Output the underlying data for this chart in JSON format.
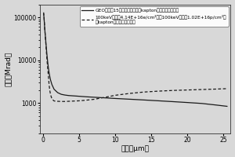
{
  "xlabel": "深度（μm）",
  "ylabel": "剂量（Mrad）",
  "xlim": [
    -0.5,
    26
  ],
  "ylim": [
    200,
    200000
  ],
  "yticks": [
    1000,
    10000,
    100000
  ],
  "ytick_labels": [
    "1000",
    "10000",
    "100000"
  ],
  "xticks": [
    0,
    5,
    10,
    15,
    20,
    25
  ],
  "legend1": "GEO轨道上15年的电子和质子在kapton中的剂量深度分布",
  "legend2": "100keV电子（4.14E+16e/cm²）和100keV质子（1.02E+16p/cm²）\n在kapton中的剂量深度分布",
  "solid_x": [
    0.05,
    0.1,
    0.15,
    0.2,
    0.3,
    0.4,
    0.5,
    0.6,
    0.7,
    0.8,
    0.9,
    1.0,
    1.2,
    1.5,
    2.0,
    2.5,
    3.0,
    3.5,
    4.0,
    5.0,
    6.0,
    7.0,
    8.0,
    9.0,
    10.0,
    12.0,
    14.0,
    16.0,
    18.0,
    20.0,
    22.0,
    24.0,
    25.5
  ],
  "solid_y": [
    120000,
    100000,
    75000,
    55000,
    35000,
    22000,
    14000,
    9500,
    6800,
    5200,
    4200,
    3500,
    2700,
    2100,
    1750,
    1600,
    1540,
    1500,
    1480,
    1440,
    1400,
    1370,
    1340,
    1310,
    1280,
    1230,
    1180,
    1130,
    1080,
    1030,
    980,
    900,
    840
  ],
  "dashed_x": [
    0.05,
    0.1,
    0.15,
    0.2,
    0.3,
    0.4,
    0.5,
    0.6,
    0.7,
    0.8,
    0.9,
    1.0,
    1.2,
    1.5,
    2.0,
    2.5,
    3.0,
    3.5,
    4.0,
    5.0,
    6.0,
    7.0,
    8.0,
    9.0,
    10.0,
    12.0,
    14.0,
    16.0,
    18.0,
    20.0,
    22.0,
    24.0,
    25.5
  ],
  "dashed_y": [
    130000,
    105000,
    78000,
    56000,
    33000,
    19000,
    11000,
    7000,
    4500,
    2800,
    2000,
    1600,
    1250,
    1120,
    1100,
    1090,
    1090,
    1100,
    1110,
    1130,
    1170,
    1220,
    1310,
    1410,
    1520,
    1680,
    1810,
    1900,
    1970,
    2020,
    2070,
    2120,
    2170
  ],
  "line_color": "#1a1a1a",
  "bg_color": "#d8d8d8",
  "plot_bg": "#d8d8d8"
}
